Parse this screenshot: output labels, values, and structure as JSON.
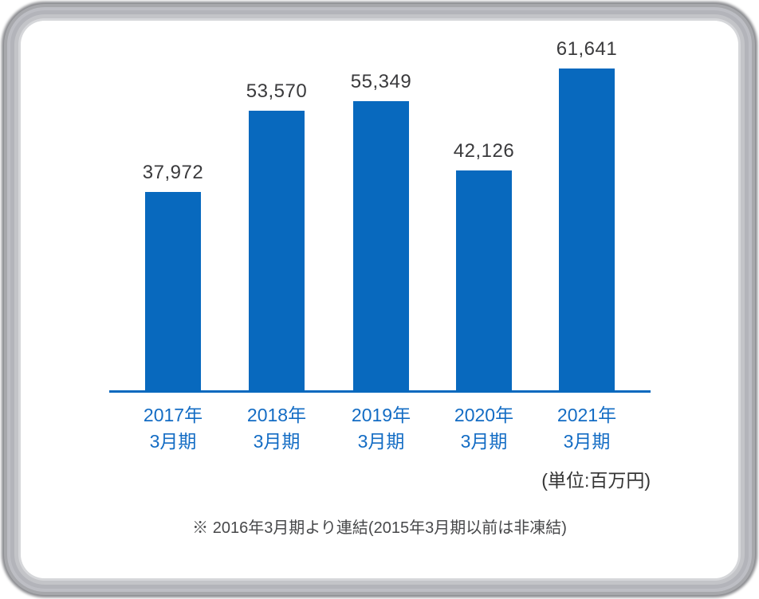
{
  "chart_data": {
    "type": "bar",
    "categories": [
      [
        "2017年",
        "3月期"
      ],
      [
        "2018年",
        "3月期"
      ],
      [
        "2019年",
        "3月期"
      ],
      [
        "2020年",
        "3月期"
      ],
      [
        "2021年",
        "3月期"
      ]
    ],
    "values": [
      37972,
      53570,
      55349,
      42126,
      61641
    ],
    "value_labels": [
      "37,972",
      "53,570",
      "55,349",
      "42,126",
      "61,641"
    ],
    "title": "",
    "xlabel": "",
    "ylabel": "",
    "ylim": [
      0,
      61641
    ],
    "grid": false,
    "legend_position": "none",
    "y_axis_visible": false,
    "x_axis_line_visible": true,
    "unit_note": "(単位:百万円)",
    "footnote": "※ 2016年3月期より連結(2015年3月期以前は非凍結)"
  },
  "colors": {
    "bar": "#0869be",
    "axis": "#0869be",
    "category_label": "#136cc4",
    "value_label": "#3a3a3c",
    "unit_note": "#343434",
    "footnote": "#47484a",
    "card_bg": "#ffffff",
    "frame_ring": "#b3b4ba"
  }
}
